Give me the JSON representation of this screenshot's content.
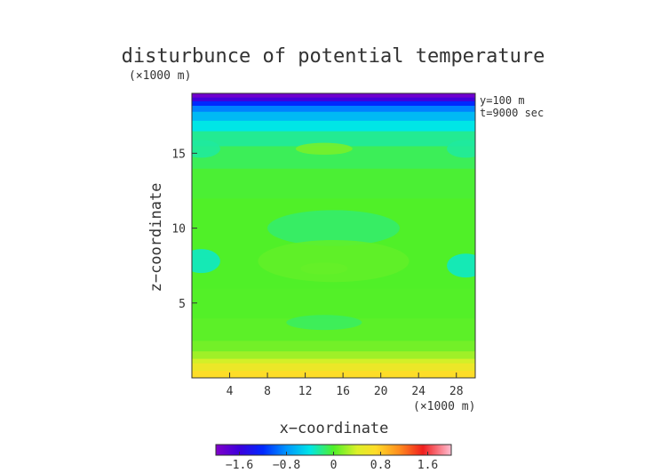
{
  "chart_data": {
    "type": "heatmap",
    "title": "disturbunce of potential temperature",
    "y_scale_note": "(×1000 m)",
    "x_scale_note": "(×1000 m)",
    "xlabel": "x−coordinate",
    "ylabel": "z−coordinate",
    "annotations": [
      "y=100 m",
      "t=9000 sec"
    ],
    "xlim": [
      0,
      30
    ],
    "ylim": [
      0,
      19
    ],
    "x_ticks": [
      4,
      8,
      12,
      16,
      20,
      24,
      28
    ],
    "x_tick_labels": [
      "4",
      "8",
      "12",
      "16",
      "20",
      "24",
      "28"
    ],
    "y_ticks": [
      5,
      10,
      15
    ],
    "y_tick_labels": [
      "5",
      "10",
      "15"
    ],
    "colorbar": {
      "vmin": -2.0,
      "vmax": 2.0,
      "ticks": [
        -1.6,
        -0.8,
        0,
        0.8,
        1.6
      ],
      "tick_labels": [
        "−1.6",
        "−0.8",
        "0",
        "0.8",
        "1.6"
      ]
    },
    "profile_z": [
      0,
      0.5,
      1.0,
      1.3,
      1.8,
      2.5,
      4,
      6,
      8,
      10,
      12,
      14,
      15.5,
      16.5,
      17.2,
      17.8,
      18.2,
      18.5,
      18.75,
      19
    ],
    "profile_value": [
      0.75,
      0.65,
      0.45,
      0.3,
      0.15,
      0.05,
      0.02,
      0.0,
      0.0,
      0.0,
      0.0,
      -0.05,
      -0.15,
      -0.3,
      -0.5,
      -0.75,
      -1.0,
      -1.4,
      -1.9,
      -1.9
    ],
    "patches": [
      {
        "x": 14,
        "z": 15.3,
        "rx": 3,
        "rz": 0.4,
        "value": 0.12
      },
      {
        "x": 1,
        "z": 15.3,
        "rx": 2,
        "rz": 0.6,
        "value": -0.25
      },
      {
        "x": 29,
        "z": 15.3,
        "rx": 2,
        "rz": 0.6,
        "value": -0.25
      },
      {
        "x": 15,
        "z": 10.0,
        "rx": 7,
        "rz": 1.2,
        "value": -0.15
      },
      {
        "x": 1,
        "z": 7.8,
        "rx": 2,
        "rz": 0.8,
        "value": -0.35
      },
      {
        "x": 29,
        "z": 7.5,
        "rx": 2,
        "rz": 0.8,
        "value": -0.35
      },
      {
        "x": 14,
        "z": 7.3,
        "rx": 2.5,
        "rz": 0.4,
        "value": 0.12
      },
      {
        "x": 15,
        "z": 7.8,
        "rx": 8,
        "rz": 1.4,
        "value": 0.05
      },
      {
        "x": 14,
        "z": 3.7,
        "rx": 4,
        "rz": 0.5,
        "value": -0.12
      }
    ]
  }
}
